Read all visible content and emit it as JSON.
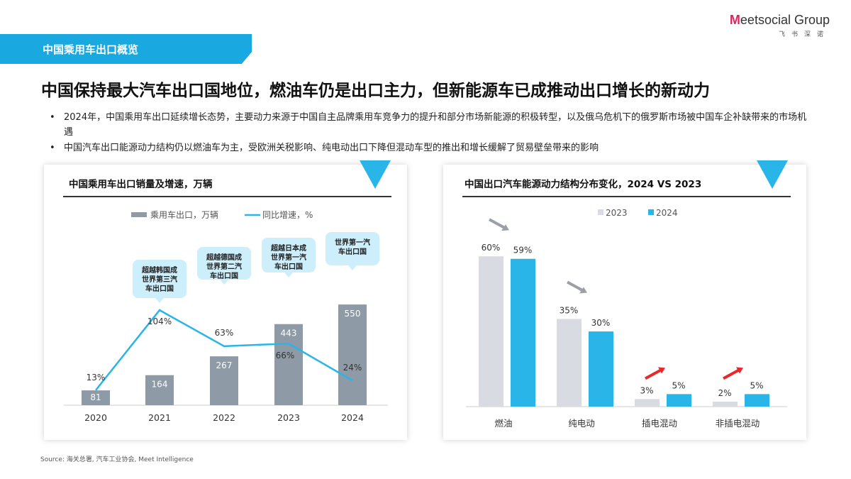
{
  "section_label": "中国乘用车出口概览",
  "logo": {
    "brand": "Meetsocial Group",
    "sub": "飞书深诺"
  },
  "headline": "中国保持最大汽车出口国地位，燃油车仍是出口主力，但新能源车已成推动出口增长的新动力",
  "bullets": [
    "2024年，中国乘用车出口延续增长态势，主要动力来源于中国自主品牌乘用车竞争力的提升和部分市场新能源的积极转型，以及俄乌危机下的俄罗斯市场被中国车企补缺带来的市场机遇",
    "中国汽车出口能源动力结构仍以燃油车为主，受欧洲关税影响、纯电动出口下降但混动车型的推出和增长缓解了贸易壁垒带来的影响"
  ],
  "source": "Source: 海关总署, 汽车工业协会, Meet Intelligence",
  "colors": {
    "accent": "#1aa8e0",
    "bar_gray": "#8e9aa5",
    "bar_light": "#d8dce2",
    "line": "#29b5e8",
    "arrow_red": "#e8282b",
    "arrow_gray": "#9aa0a6"
  },
  "chart_data": [
    {
      "type": "bar+line",
      "title": "中国乘用车出口销量及增速，万辆",
      "categories": [
        "2020",
        "2021",
        "2022",
        "2023",
        "2024"
      ],
      "series": [
        {
          "name": "乘用车出口，万辆",
          "type": "bar",
          "values": [
            81,
            164,
            267,
            443,
            550
          ]
        },
        {
          "name": "同比增速，%",
          "type": "line",
          "values": [
            13,
            104,
            63,
            66,
            24
          ]
        }
      ],
      "value_labels": [
        "81",
        "164",
        "267",
        "443",
        "550"
      ],
      "rate_labels": [
        "13%",
        "104%",
        "63%",
        "66%",
        "24%"
      ],
      "annotations": [
        {
          "category": "2021",
          "text": "超越韩国成世界第三汽车出口国"
        },
        {
          "category": "2022",
          "text": "超越德国成世界第二汽车出口国"
        },
        {
          "category": "2023",
          "text": "超越日本成世界第一汽车出口国"
        },
        {
          "category": "2024",
          "text": "世界第一汽车出口国"
        }
      ],
      "legend": "top",
      "grid": false
    },
    {
      "type": "bar",
      "title": "中国出口汽车能源动力结构分布变化，2024 VS 2023",
      "categories": [
        "燃油",
        "纯电动",
        "插电混动",
        "非插电混动"
      ],
      "series": [
        {
          "name": "2023",
          "values": [
            60,
            35,
            3,
            2
          ],
          "labels": [
            "60%",
            "35%",
            "3%",
            "2%"
          ]
        },
        {
          "name": "2024",
          "values": [
            59,
            30,
            5,
            5
          ],
          "labels": [
            "59%",
            "30%",
            "5%",
            "5%"
          ]
        }
      ],
      "trend": [
        "down",
        "down",
        "up",
        "up"
      ],
      "legend": "top",
      "grid": false
    }
  ]
}
